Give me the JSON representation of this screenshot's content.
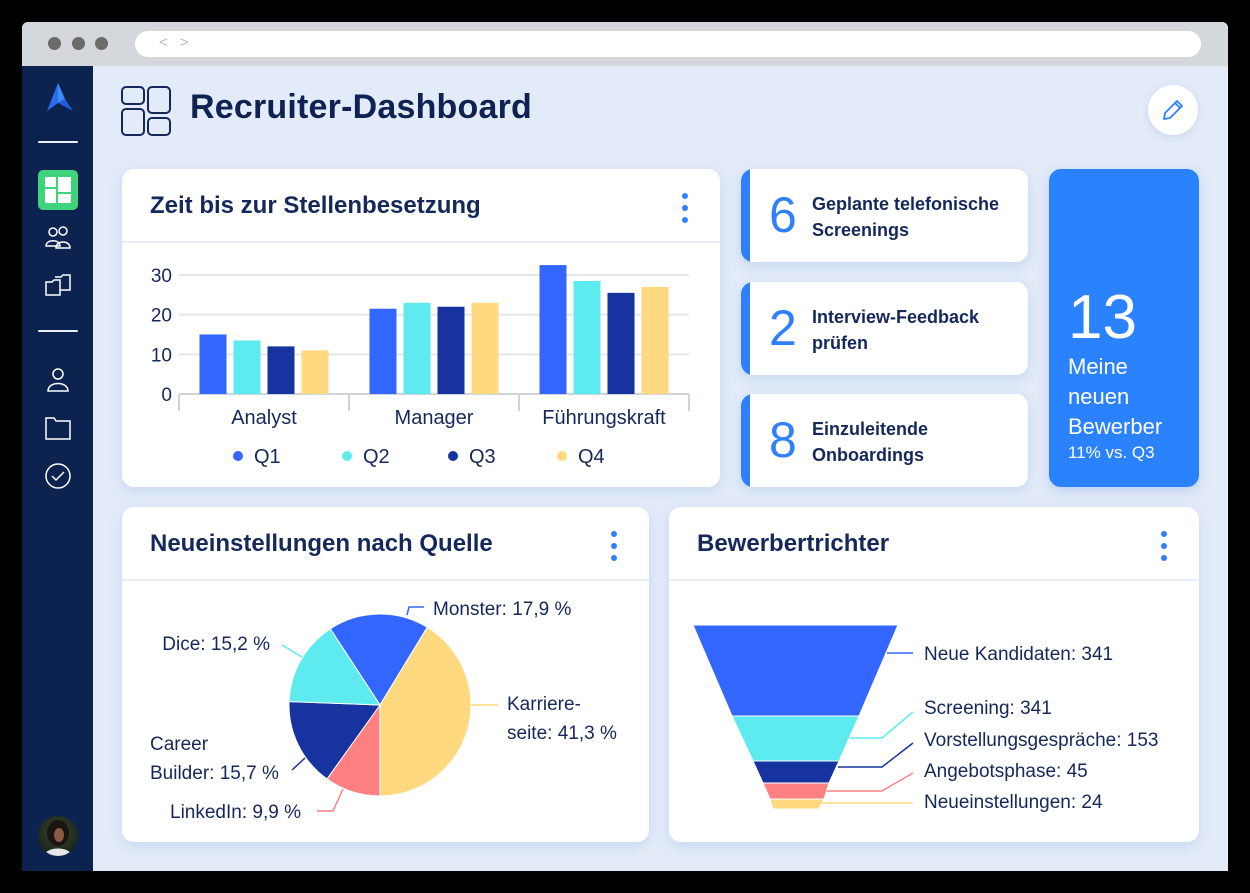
{
  "window": {
    "nav_arrows": "< >"
  },
  "sidebar": {
    "items": [
      {
        "name": "dashboard",
        "icon": "dashboard-icon",
        "active": true
      },
      {
        "name": "candidates",
        "icon": "people-icon"
      },
      {
        "name": "jobs",
        "icon": "folders-icon"
      },
      {
        "name": "profile",
        "icon": "person-icon"
      },
      {
        "name": "documents",
        "icon": "folder-icon"
      },
      {
        "name": "tasks",
        "icon": "check-circle-icon"
      }
    ],
    "avatar": "user-avatar"
  },
  "header": {
    "title": "Recruiter-Dashboard",
    "edit_icon": "pencil-icon"
  },
  "time_to_fill": {
    "title": "Zeit bis zur Stellenbesetzung",
    "menu_icon": "more-vertical-icon"
  },
  "stats": [
    {
      "value": "6",
      "line1": "Geplante telefonische",
      "line2": "Screenings"
    },
    {
      "value": "2",
      "line1": "Interview-Feedback",
      "line2": "prüfen"
    },
    {
      "value": "8",
      "line1": "Einzuleitende",
      "line2": "Onboardings"
    }
  ],
  "new_applicants": {
    "value": "13",
    "line1": "Meine",
    "line2": "neuen",
    "line3": "Bewerber",
    "delta": "11% vs. Q3"
  },
  "hires_by_source": {
    "title": "Neueinstellungen nach Quelle",
    "menu_icon": "more-vertical-icon"
  },
  "funnel": {
    "title": "Bewerbertrichter",
    "menu_icon": "more-vertical-icon"
  },
  "colors": {
    "accent": "#2f80ff",
    "big_card": "#2b82fe",
    "sidebar": "#0c2350",
    "active_nav": "#3ed47c",
    "q1": "#3366ff",
    "q2": "#5eebf0",
    "q3": "#1733a0",
    "q4": "#ffd97f",
    "linkedin": "#ff8080"
  },
  "chart_data": [
    {
      "type": "bar",
      "title": "Zeit bis zur Stellenbesetzung",
      "categories": [
        "Analyst",
        "Manager",
        "Führungskraft"
      ],
      "series": [
        {
          "name": "Q1",
          "color": "#3366ff",
          "values": [
            15,
            21.5,
            32.5
          ]
        },
        {
          "name": "Q2",
          "color": "#5eebf0",
          "values": [
            13.5,
            23,
            28.5
          ]
        },
        {
          "name": "Q3",
          "color": "#1733a0",
          "values": [
            12,
            22,
            25.5
          ]
        },
        {
          "name": "Q4",
          "color": "#ffd97f",
          "values": [
            11,
            23,
            27
          ]
        }
      ],
      "yticks": [
        0,
        10,
        20,
        30
      ],
      "ylim": [
        0,
        30
      ],
      "xlabel": "",
      "ylabel": "",
      "grid": true,
      "legend_position": "bottom"
    },
    {
      "type": "pie",
      "title": "Neueinstellungen nach Quelle",
      "start_angle_deg": -33.12,
      "slices": [
        {
          "name": "Monster",
          "value": 17.9,
          "color": "#3366ff",
          "label_lines": [
            "Monster: 17,9 %"
          ]
        },
        {
          "name": "Karriereseite",
          "value": 41.3,
          "color": "#ffd97f",
          "label_lines": [
            "Karriere-",
            "seite: 41,3 %"
          ]
        },
        {
          "name": "LinkedIn",
          "value": 9.9,
          "color": "#ff8080",
          "label_lines": [
            "LinkedIn: 9,9 %"
          ]
        },
        {
          "name": "Career Builder",
          "value": 15.7,
          "color": "#1733a0",
          "label_lines": [
            "Career",
            "Builder: 15,7 %"
          ]
        },
        {
          "name": "Dice",
          "value": 15.2,
          "color": "#5eebf0",
          "label_lines": [
            "Dice: 15,2 %"
          ]
        }
      ]
    },
    {
      "type": "funnel",
      "title": "Bewerbertrichter",
      "stages": [
        {
          "name": "Neue Kandidaten",
          "value": 341,
          "color": "#3366ff",
          "label": "Neue Kandidaten: 341"
        },
        {
          "name": "Screening",
          "value": 341,
          "color": "#5eebf0",
          "label": "Screening: 341"
        },
        {
          "name": "Vorstellungsgespräche",
          "value": 153,
          "color": "#1733a0",
          "label": "Vorstellungsgespräche: 153"
        },
        {
          "name": "Angebotsphase",
          "value": 45,
          "color": "#ff8080",
          "label": "Angebotsphase: 45"
        },
        {
          "name": "Neueinstellungen",
          "value": 24,
          "color": "#ffd97f",
          "label": "Neueinstellungen: 24"
        }
      ]
    }
  ]
}
